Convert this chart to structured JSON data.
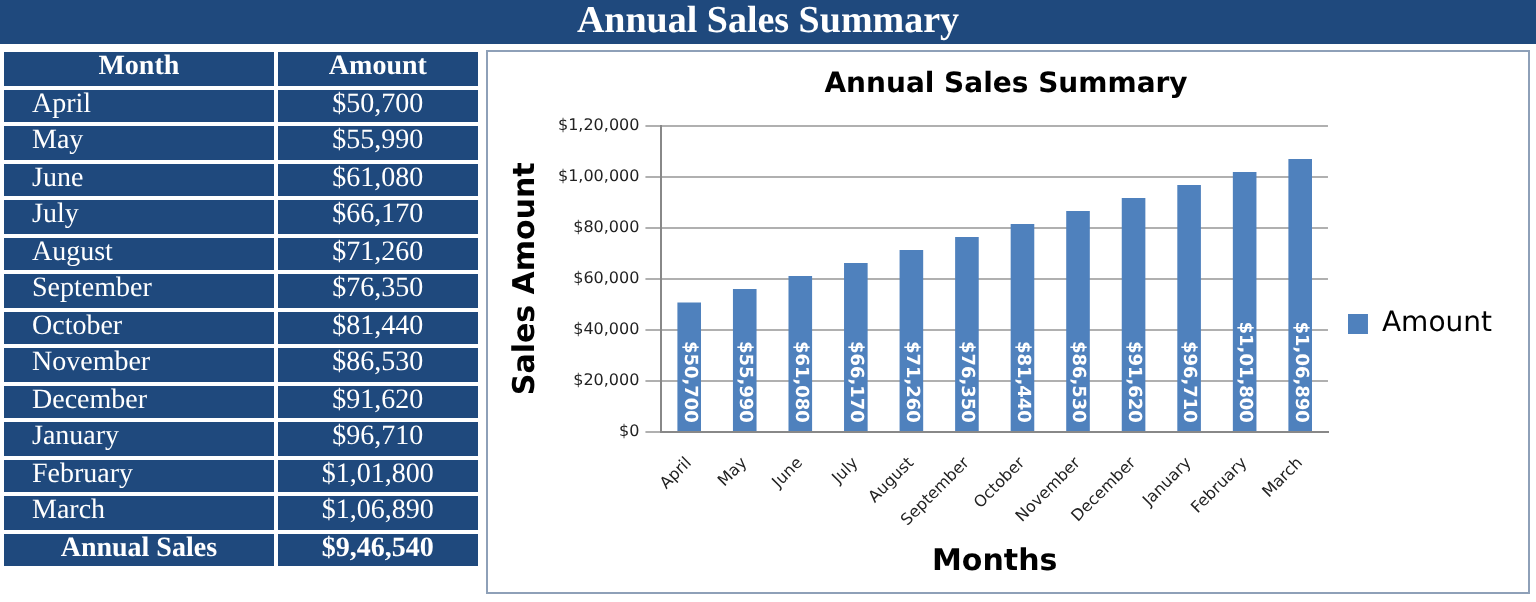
{
  "chart_data": {
    "type": "bar",
    "title": "Annual Sales Summary",
    "xlabel": "Months",
    "ylabel": "Sales Amount",
    "categories": [
      "April",
      "May",
      "June",
      "July",
      "August",
      "September",
      "October",
      "November",
      "December",
      "January",
      "February",
      "March"
    ],
    "series": [
      {
        "name": "Amount",
        "color": "#4f81bd",
        "values": [
          50700,
          55990,
          61080,
          66170,
          71260,
          76350,
          81440,
          86530,
          91620,
          96710,
          101800,
          106890
        ],
        "value_labels": [
          "$50,700",
          "$55,990",
          "$61,080",
          "$66,170",
          "$71,260",
          "$76,350",
          "$81,440",
          "$86,530",
          "$91,620",
          "$96,710",
          "$1,01,800",
          "$1,06,890"
        ]
      }
    ],
    "ylim": [
      0,
      120000
    ],
    "yticks": [
      {
        "value": 0,
        "label": "$0"
      },
      {
        "value": 20000,
        "label": "$20,000"
      },
      {
        "value": 40000,
        "label": "$40,000"
      },
      {
        "value": 60000,
        "label": "$60,000"
      },
      {
        "value": 80000,
        "label": "$80,000"
      },
      {
        "value": 100000,
        "label": "$1,00,000"
      },
      {
        "value": 120000,
        "label": "$1,20,000"
      }
    ],
    "grid": "y",
    "legend": "right",
    "annotations": [
      "Month",
      "Annual Sales",
      "$9,46,540"
    ]
  }
}
